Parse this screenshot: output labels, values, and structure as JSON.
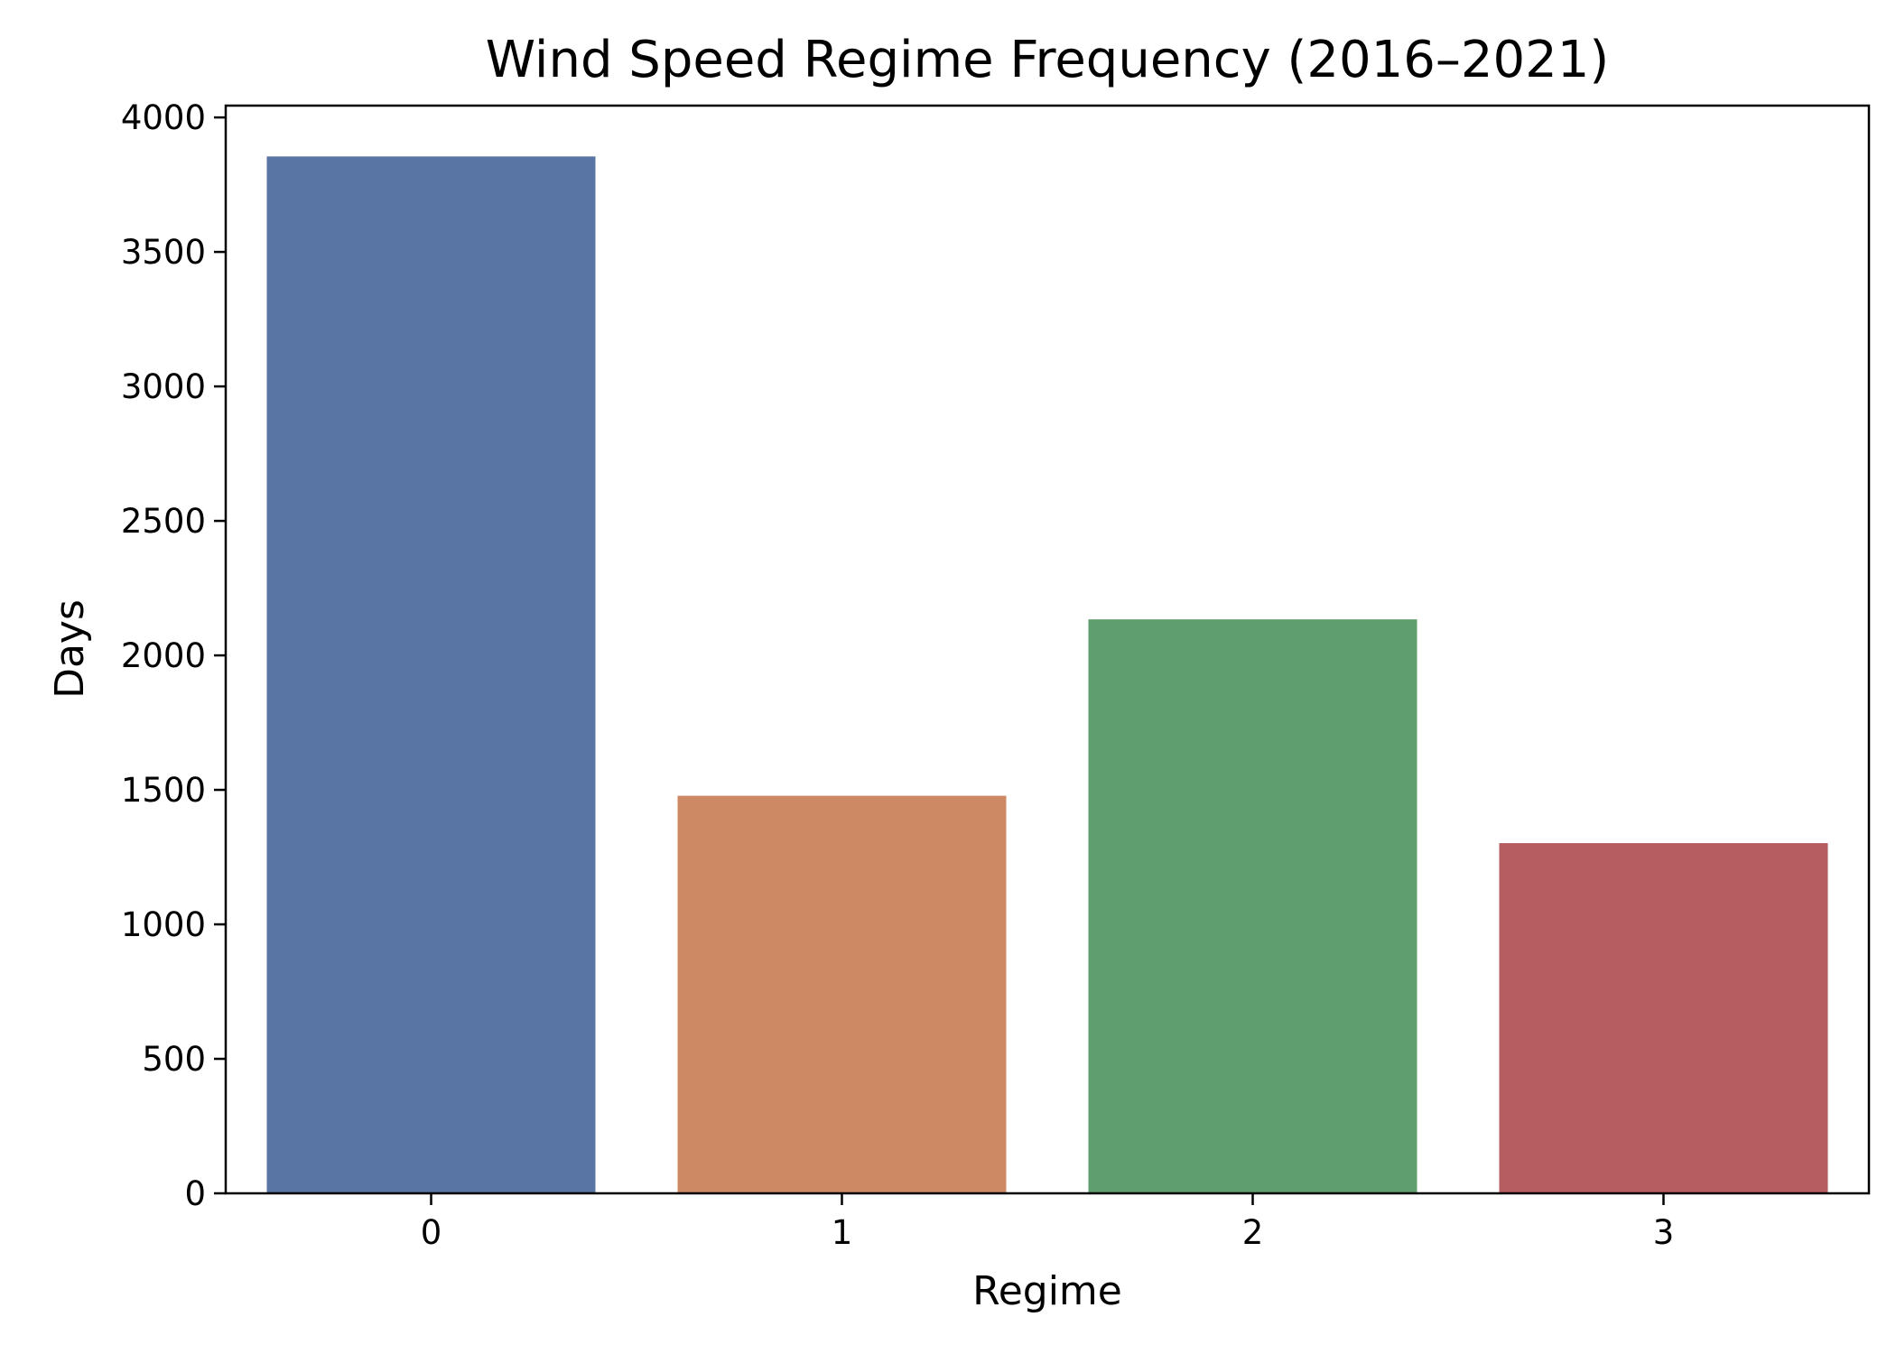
{
  "chart_data": {
    "type": "bar",
    "title": "Wind Speed Regime Frequency (2016–2021)",
    "xlabel": "Regime",
    "ylabel": "Days",
    "categories": [
      "0",
      "1",
      "2",
      "3"
    ],
    "values": [
      3855,
      1478,
      2134,
      1302
    ],
    "colors": [
      "#5975a4",
      "#cc8963",
      "#5f9e6e",
      "#b55d60"
    ],
    "ylim": [
      0,
      4044
    ],
    "yticks": [
      0,
      500,
      1000,
      1500,
      2000,
      2500,
      3000,
      3500,
      4000
    ],
    "grid": false,
    "legend": false
  }
}
